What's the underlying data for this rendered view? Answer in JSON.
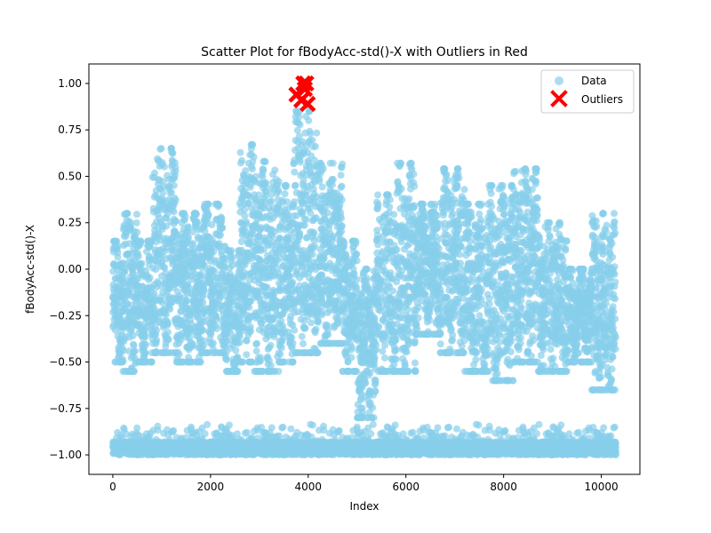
{
  "chart_data": {
    "type": "scatter",
    "title": "Scatter Plot for fBodyAcc-std()-X with Outliers in Red",
    "xlabel": "Index",
    "ylabel": "fBodyAcc-std()-X",
    "xlim": [
      -490,
      10790
    ],
    "ylim": [
      -1.105,
      1.105
    ],
    "xticks": [
      0,
      2000,
      4000,
      6000,
      8000,
      10000
    ],
    "yticks": [
      -1.0,
      -0.75,
      -0.5,
      -0.25,
      0.0,
      0.25,
      0.5,
      0.75,
      1.0
    ],
    "ytick_labels": [
      "−1.00",
      "−0.75",
      "−0.50",
      "−0.25",
      "0.00",
      "0.25",
      "0.50",
      "0.75",
      "1.00"
    ],
    "legend": {
      "placement": "top-right",
      "entries": [
        "Data",
        "Outliers"
      ]
    },
    "grid": false,
    "colors": {
      "data": "#87ceeb",
      "outliers": "#ff0000"
    },
    "n_points": 10299,
    "segments": [
      {
        "x0": 0,
        "x1": 200,
        "low": -0.45,
        "high": 0.15
      },
      {
        "x0": 200,
        "x1": 500,
        "low": -0.5,
        "high": 0.3
      },
      {
        "x0": 500,
        "x1": 800,
        "low": -0.45,
        "high": 0.15
      },
      {
        "x0": 800,
        "x1": 1300,
        "low": -0.4,
        "high": 0.65
      },
      {
        "x0": 1300,
        "x1": 1800,
        "low": -0.45,
        "high": 0.3
      },
      {
        "x0": 1800,
        "x1": 2300,
        "low": -0.4,
        "high": 0.35
      },
      {
        "x0": 2300,
        "x1": 2600,
        "low": -0.5,
        "high": 0.1
      },
      {
        "x0": 2600,
        "x1": 2900,
        "low": -0.45,
        "high": 0.67
      },
      {
        "x0": 2900,
        "x1": 3400,
        "low": -0.5,
        "high": 0.58
      },
      {
        "x0": 3400,
        "x1": 3700,
        "low": -0.45,
        "high": 0.45
      },
      {
        "x0": 3700,
        "x1": 4200,
        "low": -0.4,
        "high": 0.85
      },
      {
        "x0": 4200,
        "x1": 4700,
        "low": -0.35,
        "high": 0.57
      },
      {
        "x0": 4700,
        "x1": 5000,
        "low": -0.5,
        "high": 0.15
      },
      {
        "x0": 5000,
        "x1": 5400,
        "low": -0.75,
        "high": 0.0
      },
      {
        "x0": 5400,
        "x1": 5800,
        "low": -0.5,
        "high": 0.4
      },
      {
        "x0": 5800,
        "x1": 6200,
        "low": -0.5,
        "high": 0.57
      },
      {
        "x0": 6200,
        "x1": 6700,
        "low": -0.3,
        "high": 0.35
      },
      {
        "x0": 6700,
        "x1": 7200,
        "low": -0.4,
        "high": 0.54
      },
      {
        "x0": 7200,
        "x1": 7700,
        "low": -0.5,
        "high": 0.35
      },
      {
        "x0": 7700,
        "x1": 8200,
        "low": -0.55,
        "high": 0.45
      },
      {
        "x0": 8200,
        "x1": 8700,
        "low": -0.45,
        "high": 0.54
      },
      {
        "x0": 8700,
        "x1": 9300,
        "low": -0.5,
        "high": 0.25
      },
      {
        "x0": 9300,
        "x1": 9800,
        "low": -0.45,
        "high": 0.0
      },
      {
        "x0": 9800,
        "x1": 10299,
        "low": -0.6,
        "high": 0.3
      }
    ],
    "outliers": [
      {
        "x": 3760,
        "y": 0.94
      },
      {
        "x": 3860,
        "y": 0.91
      },
      {
        "x": 3900,
        "y": 1.0
      },
      {
        "x": 3930,
        "y": 0.97
      },
      {
        "x": 3960,
        "y": 1.0
      },
      {
        "x": 3990,
        "y": 0.89
      }
    ]
  }
}
